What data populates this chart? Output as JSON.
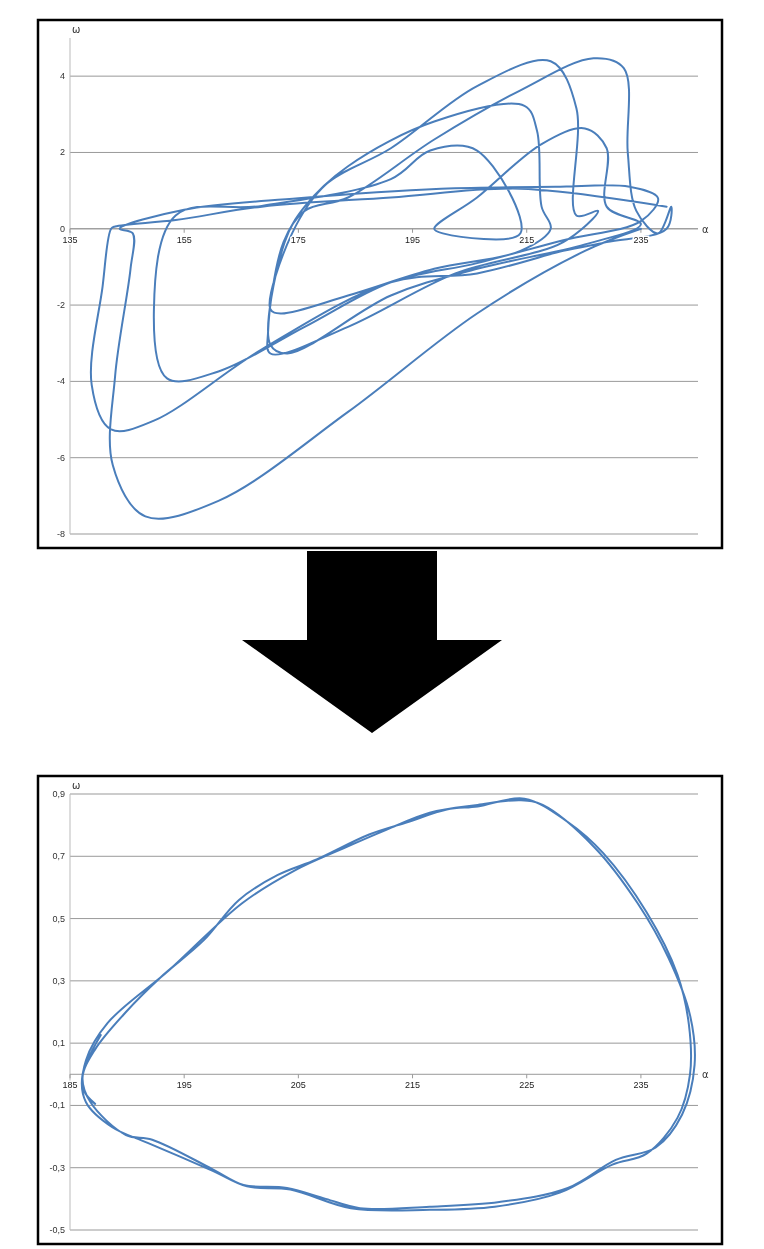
{
  "chart_data": [
    {
      "type": "line",
      "xlabel": "α",
      "ylabel": "ω",
      "xlim": [
        135,
        245
      ],
      "ylim": [
        -8,
        5
      ],
      "xticks": [
        135,
        155,
        175,
        195,
        215,
        235
      ],
      "yticks": [
        -8,
        -6,
        -4,
        -2,
        0,
        2,
        4
      ],
      "grid": "y",
      "series": [
        {
          "color": "#4a7ebb",
          "x": [
            239.5,
            213.9,
            191.2,
            168.6,
            153.5,
            142.9,
            142.2,
            140.7,
            138.8,
            142.2,
            149.7,
            168.6,
            191.2,
            206.3,
            221.4,
            229,
            239.5,
            240.3,
            238,
            234.2,
            232.7,
            232,
            226.7,
            213.9,
            198.8,
            183.7,
            176.1,
            172.4,
            169.7,
            170.1,
            183.7,
            202.5,
            221.4,
            227.5,
            223.7,
            223.7,
            219.2,
            206.3,
            191.2,
            179.9,
            173.9,
            170.1,
            171.9,
            183.7,
            198.8,
            213.9,
            219.2,
            217.6,
            216.8,
            214.6,
            198.8,
            183.7,
            176.1,
            172.6,
            170.1,
            173.1,
            191.2,
            206.3,
            225.2,
            235,
            229,
            229,
            225.2,
            217.6,
            206.3,
            198.8,
            200.3,
            213.9,
            206.3,
            198.1,
            191.2,
            168.6,
            153.5,
            149.7,
            152,
            161,
            176.1,
            191.2,
            206.3,
            221.4,
            235,
            238,
            233,
            220,
            200,
            175,
            155,
            143.7,
            146,
            145.6,
            142.9,
            142.5,
            148.2,
            161,
            183.7,
            206.3,
            225.2,
            235
          ],
          "values": [
            0.58,
            1.05,
            0.82,
            0.58,
            0.23,
            0.06,
            0,
            -1.52,
            -4.09,
            -5.26,
            -5.03,
            -3.16,
            -1.4,
            -1.17,
            -0.58,
            -0.35,
            0,
            0.58,
            -0.12,
            0.47,
            1.99,
            4.21,
            4.47,
            3.63,
            2.34,
            0.82,
            0.47,
            -0.35,
            -2.69,
            -3.27,
            -2.57,
            -1.17,
            -0.35,
            0.47,
            0.35,
            3.16,
            4.39,
            3.74,
            2.11,
            1.17,
            -0.12,
            -2.11,
            -2.22,
            -1.75,
            -1.05,
            -0.58,
            0,
            0.58,
            2.57,
            3.22,
            2.81,
            1.64,
            0.58,
            -0.35,
            -3.04,
            -3.27,
            -1.75,
            -1.05,
            -0.41,
            0.12,
            0.58,
            2.11,
            2.63,
            2.22,
            0.82,
            0,
            -0.12,
            -0.12,
            2.05,
            2.05,
            1.3,
            0.6,
            0.35,
            -2.11,
            -3.92,
            -3.74,
            -2.57,
            -1.4,
            -0.9,
            -0.3,
            0.2,
            0.8,
            1.1,
            1.1,
            1.05,
            0.8,
            0.5,
            0,
            -0.12,
            -1.05,
            -3.86,
            -6.2,
            -7.54,
            -7.13,
            -4.8,
            -2.22,
            -0.58,
            0
          ]
        }
      ]
    },
    {
      "type": "line",
      "xlabel": "α",
      "ylabel": "ω",
      "xlim": [
        185,
        240
      ],
      "ylim": [
        -0.5,
        0.9
      ],
      "xticks": [
        185,
        195,
        205,
        215,
        225,
        235
      ],
      "yticks": [
        {
          "value": -0.5,
          "label": "-0,5"
        },
        {
          "value": -0.3,
          "label": "-0,3"
        },
        {
          "value": -0.1,
          "label": "-0,1"
        },
        {
          "value": 0.1,
          "label": "0,1"
        },
        {
          "value": 0.3,
          "label": "0,3"
        },
        {
          "value": 0.5,
          "label": "0,5"
        },
        {
          "value": 0.7,
          "label": "0,7"
        },
        {
          "value": 0.9,
          "label": "0,9"
        }
      ],
      "grid": "y",
      "series": [
        {
          "color": "#4a7ebb",
          "x": [
            187.7,
            186.1,
            186.4,
            188.7,
            191.8,
            197.5,
            200.5,
            204.3,
            209.6,
            216.5,
            222.2,
            227.9,
            232.5,
            235.5,
            238.2,
            239.3,
            239.2,
            238.2,
            235.5,
            231.7,
            228.6,
            224.8,
            220.7,
            218,
            214.6,
            211.2,
            206.6,
            203.2,
            199.8,
            196.7,
            192.9,
            189.9,
            187.2,
            186.1,
            186.8,
            189.9,
            192.2,
            197.5,
            200.2,
            204,
            207.4,
            210.4,
            216.5,
            222.6,
            228.6,
            232.8,
            236.3,
            238.6,
            239.7,
            239.3,
            237.4,
            234.7,
            230.9,
            226.4,
            224.5,
            220.7,
            216.5,
            212.7,
            208.9,
            204.7,
            200.1,
            193.7,
            188.3,
            186.4,
            186.2,
            187.2
          ],
          "values": [
            0.126,
            0,
            -0.09,
            -0.17,
            -0.22,
            -0.31,
            -0.36,
            -0.37,
            -0.43,
            -0.435,
            -0.425,
            -0.38,
            -0.29,
            -0.255,
            -0.14,
            0,
            0.16,
            0.32,
            0.52,
            0.71,
            0.81,
            0.885,
            0.86,
            0.85,
            0.81,
            0.77,
            0.69,
            0.64,
            0.56,
            0.43,
            0.31,
            0.2,
            0.08,
            -0.01,
            -0.09,
            -0.195,
            -0.21,
            -0.305,
            -0.355,
            -0.365,
            -0.4,
            -0.43,
            -0.425,
            -0.41,
            -0.365,
            -0.275,
            -0.235,
            -0.13,
            0.03,
            0.19,
            0.375,
            0.55,
            0.73,
            0.865,
            0.88,
            0.865,
            0.84,
            0.785,
            0.725,
            0.655,
            0.55,
            0.335,
            0.165,
            0.045,
            -0.05,
            -0.095
          ]
        }
      ]
    }
  ]
}
